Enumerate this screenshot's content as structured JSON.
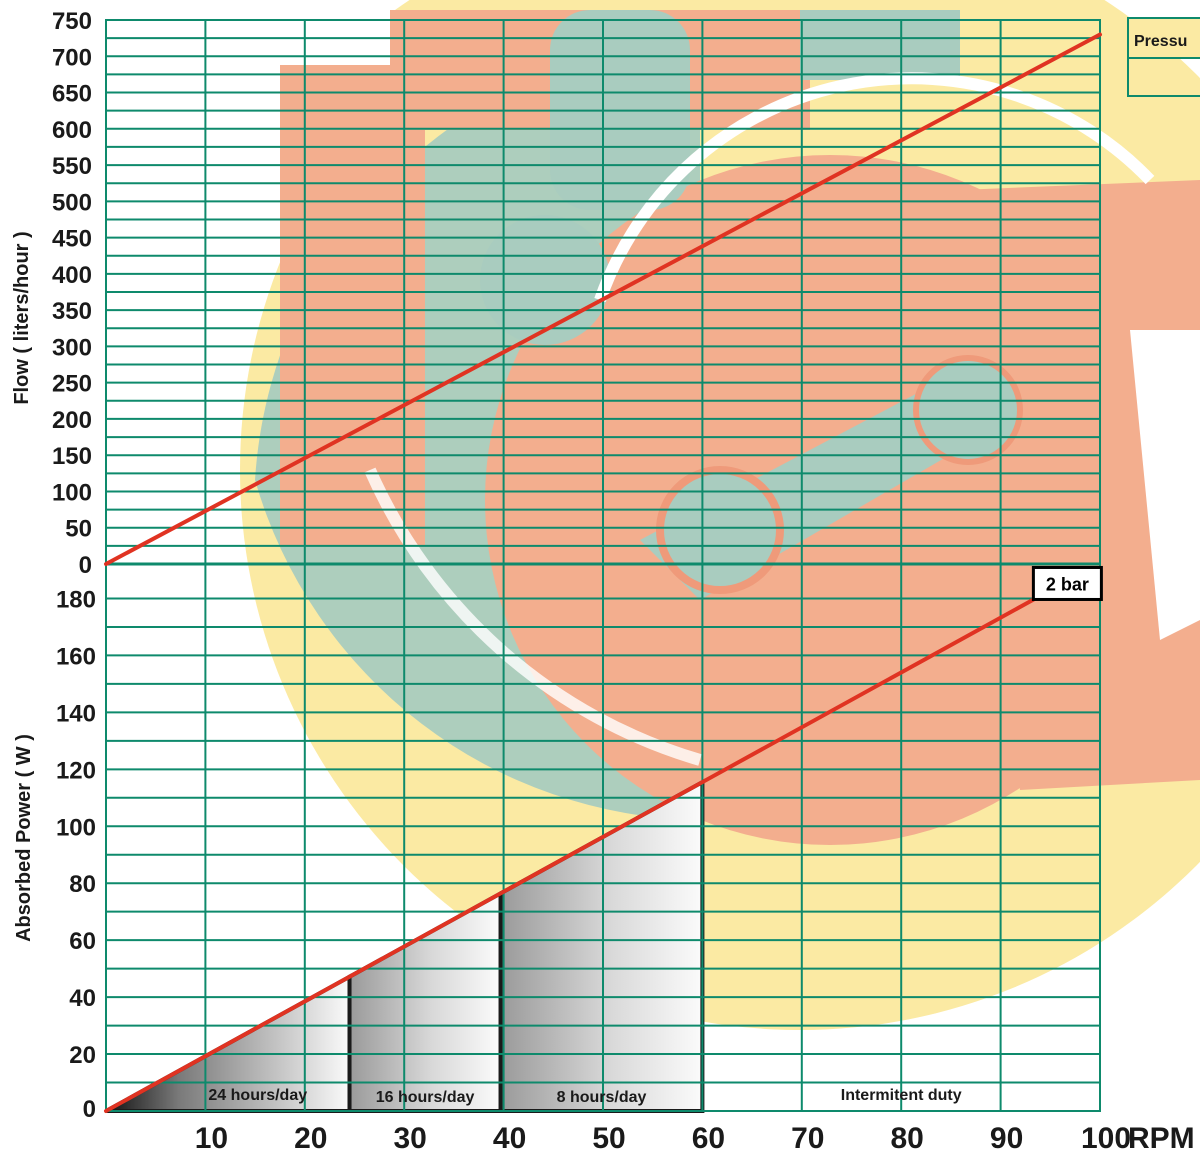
{
  "chart_data": {
    "type": "line",
    "x_unit": "RPM",
    "x_ticks": [
      10,
      20,
      30,
      40,
      50,
      60,
      70,
      80,
      90,
      100
    ],
    "xlim": [
      0,
      100
    ],
    "legend_label": "Pressu",
    "legend_position": "top-right",
    "grid": true,
    "colors": {
      "grid": "#0e8a6c",
      "line": "#e03322",
      "bg_teal": "#a9ccbf",
      "bg_salmon": "#f3ae8e",
      "bg_yellow": "#fbeaa3"
    },
    "flow_panel": {
      "ylabel": "Flow ( liters/hour )",
      "ylim": [
        0,
        750
      ],
      "y_ticks": [
        0,
        50,
        100,
        150,
        200,
        250,
        300,
        350,
        400,
        450,
        500,
        550,
        600,
        650,
        700,
        750
      ],
      "series": [
        {
          "x": [
            0,
            100
          ],
          "y": [
            0,
            730
          ]
        }
      ]
    },
    "power_panel": {
      "ylabel": "Absorbed Power ( W )",
      "ylim": [
        0,
        190
      ],
      "y_ticks": [
        0,
        20,
        40,
        60,
        80,
        100,
        120,
        140,
        160,
        180
      ],
      "series": [
        {
          "name": "2 bar",
          "x": [
            0,
            93.5
          ],
          "y": [
            0,
            180
          ]
        }
      ],
      "duty_bands": [
        {
          "label": "24 hours/day",
          "x_from": 0,
          "x_to": 24.5
        },
        {
          "label": "16 hours/day",
          "x_from": 24.5,
          "x_to": 39.7
        },
        {
          "label": "8 hours/day",
          "x_from": 39.7,
          "x_to": 60
        },
        {
          "label": "Intermitent duty",
          "x_from": 60,
          "x_to": 100
        }
      ]
    }
  }
}
